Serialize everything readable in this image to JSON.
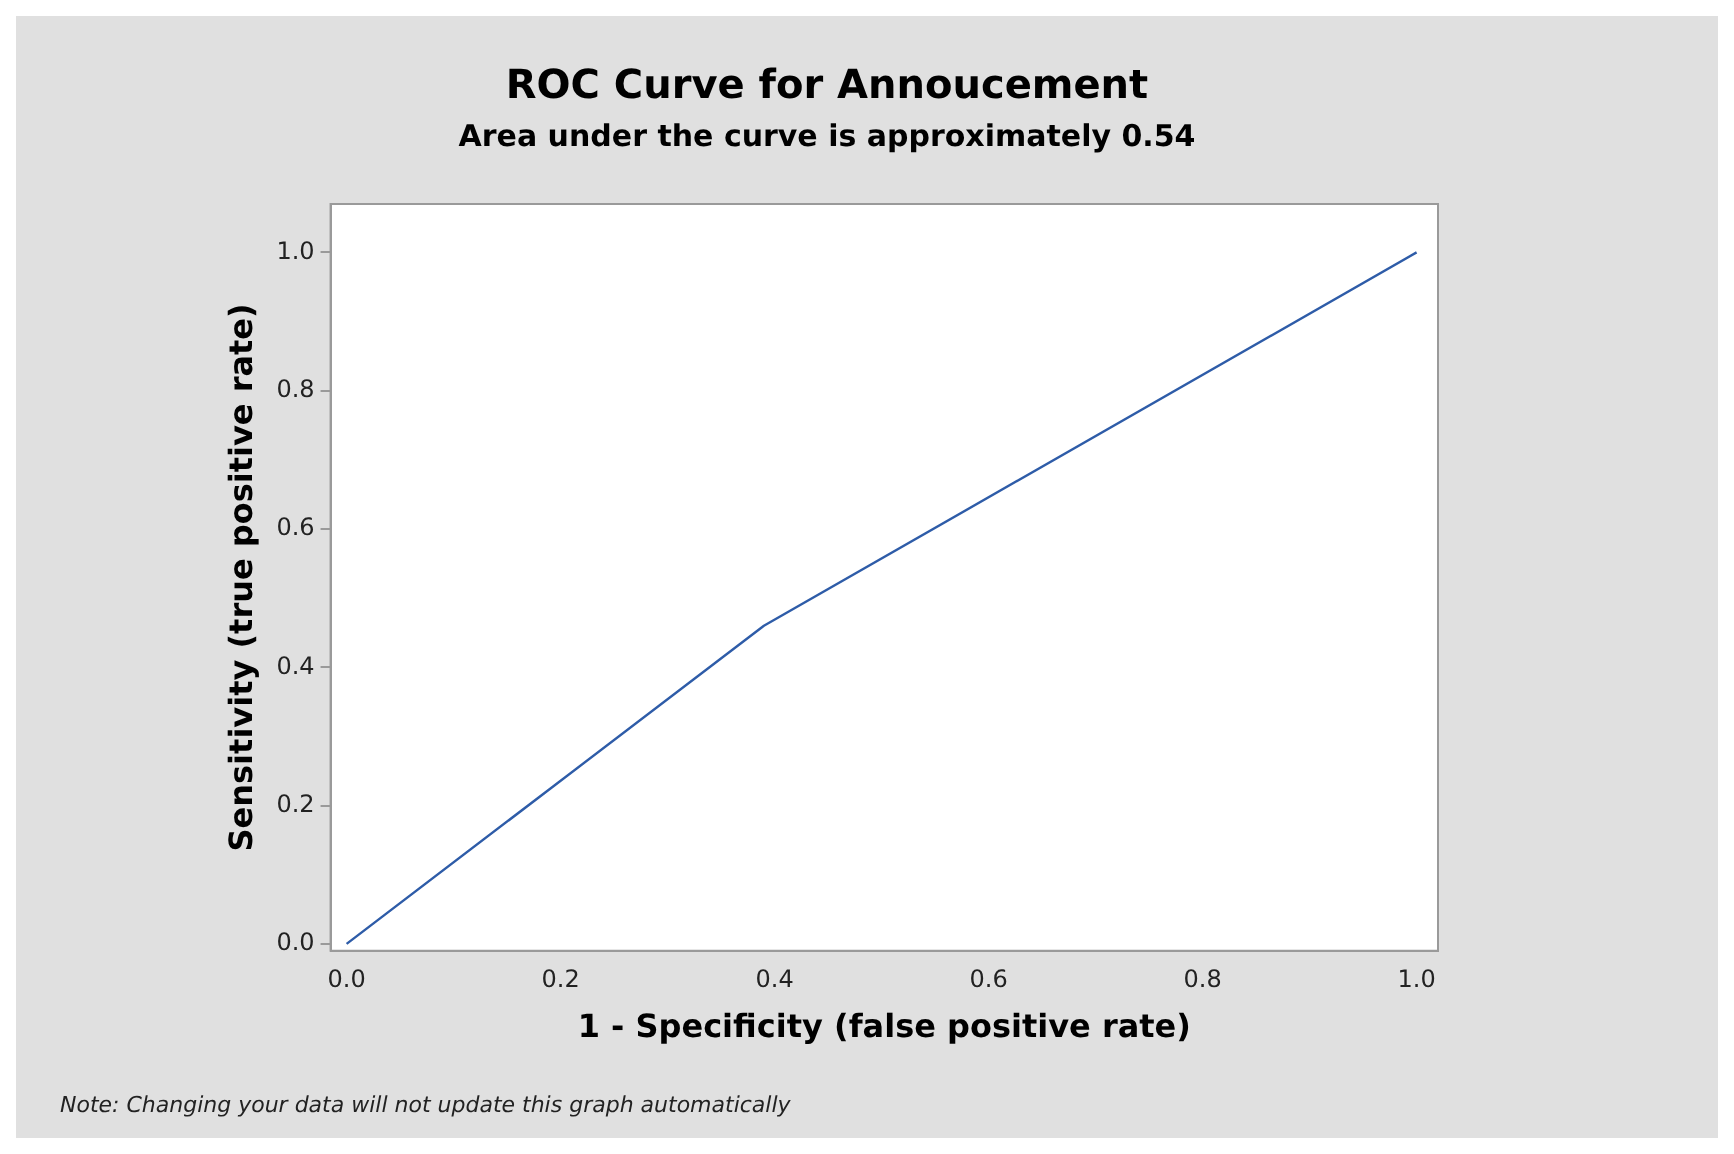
{
  "chart_data": {
    "type": "line",
    "title": "ROC Curve for Annoucement",
    "subtitle": "Area under the curve is approximately 0.54",
    "xlabel": "1 - Specificity (false positive rate)",
    "ylabel": "Sensitivity (true positive rate)",
    "annotations": [
      "Note: Changing your data will not update this graph automatically"
    ],
    "x": [
      0,
      0.39,
      1
    ],
    "series": [
      {
        "color": "#2e5ca8",
        "values": [
          0,
          0.46,
          1
        ]
      }
    ],
    "xlim": [
      -0.015,
      1.02
    ],
    "ylim": [
      -0.01,
      1.07
    ],
    "xticks": [
      {
        "value": 0,
        "label": "0.0"
      },
      0.2,
      0.4,
      0.6,
      0.8,
      {
        "value": 1,
        "label": "1.0"
      }
    ],
    "yticks": [
      {
        "value": 0,
        "label": "0.0"
      },
      0.2,
      0.4,
      0.6,
      0.8,
      {
        "value": 1,
        "label": "1.0"
      }
    ],
    "grid": false,
    "legend": false,
    "marker": "none",
    "line_style": "solid"
  }
}
